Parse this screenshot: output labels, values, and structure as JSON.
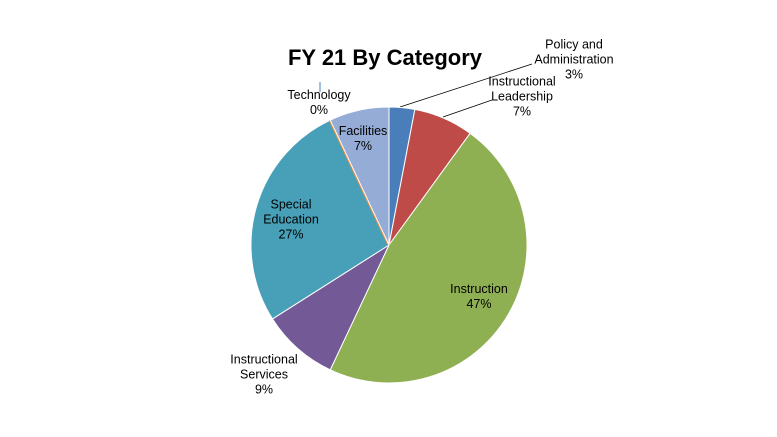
{
  "chart_data": {
    "type": "pie",
    "title": "FY 21 By Category",
    "categories": [
      "Policy and Administration",
      "Instructional Leadership",
      "Instruction",
      "Instructional Services",
      "Special Education",
      "Technology",
      "Facilities"
    ],
    "values": [
      3,
      7,
      47,
      9,
      27,
      0,
      7
    ],
    "value_labels": [
      "3%",
      "7%",
      "47%",
      "9%",
      "27%",
      "0%",
      "7%"
    ],
    "colors": [
      "#4a7ebb",
      "#be4b48",
      "#8fb052",
      "#735995",
      "#47a0b8",
      "#f08c3a",
      "#95acd6"
    ]
  }
}
